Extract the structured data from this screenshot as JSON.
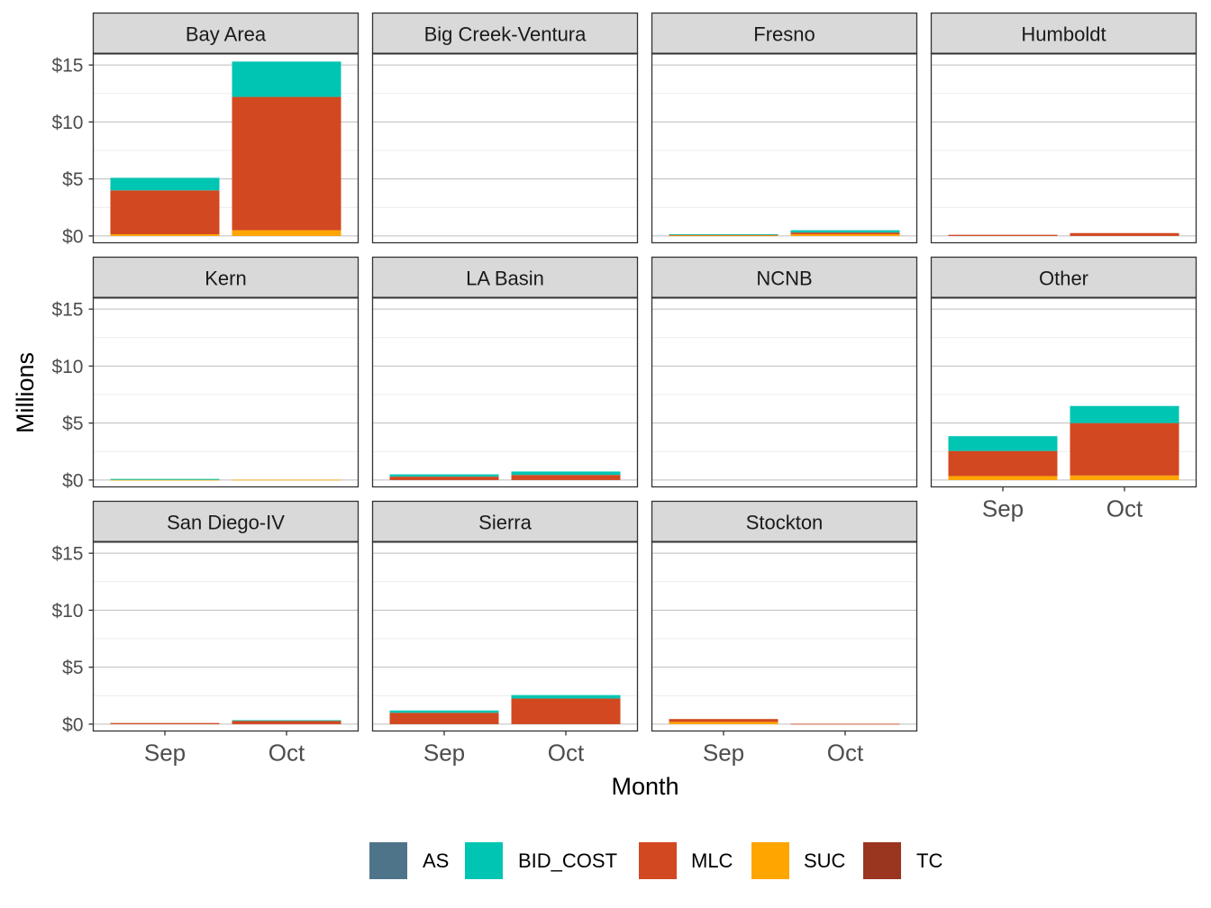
{
  "chart_data": {
    "type": "bar",
    "stacked": true,
    "facet_layout": "4 columns x 3 rows, shared axes",
    "xlabel": "Month",
    "ylabel": "Millions",
    "categories": [
      "Sep",
      "Oct"
    ],
    "ylim": [
      0,
      15
    ],
    "y_ticks": [
      0,
      5,
      10,
      15
    ],
    "y_tick_labels": [
      "$0",
      "$5",
      "$10",
      "$15"
    ],
    "grid": true,
    "legend_position": "bottom",
    "series_order": [
      "AS",
      "BID_COST",
      "MLC",
      "SUC",
      "TC"
    ],
    "colors": {
      "AS": "#4e7489",
      "BID_COST": "#00c5b2",
      "MLC": "#d24820",
      "SUC": "#ffa500",
      "TC": "#9a3520"
    },
    "stack_order_bottom_to_top": [
      "SUC",
      "MLC",
      "BID_COST",
      "AS",
      "TC"
    ],
    "panels": [
      {
        "name": "Bay Area",
        "Sep": {
          "SUC": 0.15,
          "MLC": 3.85,
          "BID_COST": 1.1
        },
        "Oct": {
          "SUC": 0.5,
          "MLC": 11.7,
          "BID_COST": 3.1
        }
      },
      {
        "name": "Big Creek-Ventura",
        "Sep": {},
        "Oct": {}
      },
      {
        "name": "Fresno",
        "Sep": {
          "SUC": 0.05,
          "MLC": 0.05,
          "BID_COST": 0.05
        },
        "Oct": {
          "SUC": 0.15,
          "MLC": 0.15,
          "BID_COST": 0.2
        }
      },
      {
        "name": "Humboldt",
        "Sep": {
          "MLC": 0.1
        },
        "Oct": {
          "MLC": 0.25
        }
      },
      {
        "name": "Kern",
        "Sep": {
          "SUC": 0.02,
          "BID_COST": 0.08
        },
        "Oct": {
          "SUC": 0.03
        }
      },
      {
        "name": "LA Basin",
        "Sep": {
          "MLC": 0.3,
          "BID_COST": 0.2
        },
        "Oct": {
          "MLC": 0.45,
          "BID_COST": 0.3
        }
      },
      {
        "name": "NCNB",
        "Sep": {},
        "Oct": {}
      },
      {
        "name": "Other",
        "Sep": {
          "SUC": 0.35,
          "MLC": 2.2,
          "BID_COST": 1.3
        },
        "Oct": {
          "SUC": 0.4,
          "MLC": 4.6,
          "BID_COST": 1.5
        }
      },
      {
        "name": "San Diego-IV",
        "Sep": {
          "MLC": 0.1
        },
        "Oct": {
          "MLC": 0.3,
          "BID_COST": 0.05
        }
      },
      {
        "name": "Sierra",
        "Sep": {
          "MLC": 1.0,
          "BID_COST": 0.2
        },
        "Oct": {
          "MLC": 2.25,
          "BID_COST": 0.3
        }
      },
      {
        "name": "Stockton",
        "Sep": {
          "SUC": 0.2,
          "MLC": 0.25
        },
        "Oct": {
          "MLC": 0.03
        }
      }
    ]
  }
}
